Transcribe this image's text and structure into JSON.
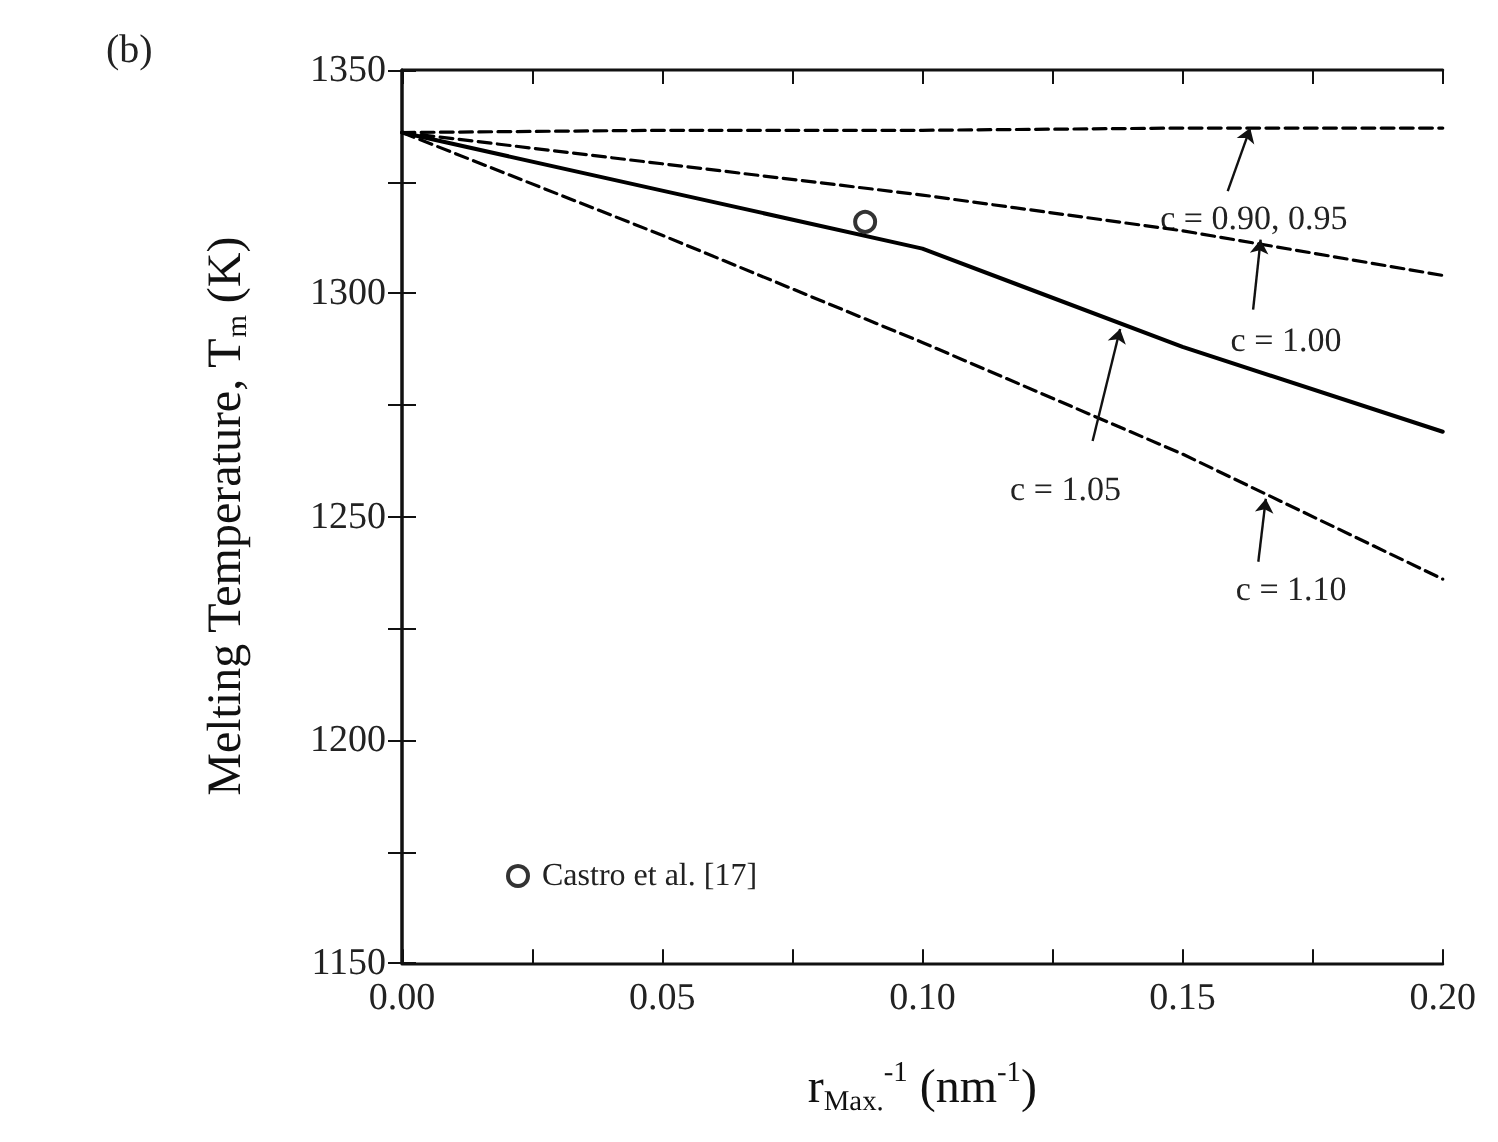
{
  "chart_data": {
    "type": "line",
    "title": "(b)",
    "xlabel": "r$_{Max.}$$^{-1}$ (nm$^{-1}$)",
    "ylabel": "Melting Temperature, T$_{m}$ (K)",
    "x": [
      0,
      0.05,
      0.1,
      0.15,
      0.2
    ],
    "series": [
      {
        "color": "#000000",
        "line_style": "dashed",
        "values": [
          1336,
          1336.5,
          1336.5,
          1337,
          1337
        ]
      },
      {
        "color": "#000000",
        "line_style": "dashed",
        "values": [
          1336,
          1329,
          1322,
          1314,
          1304
        ]
      },
      {
        "color": "#000000",
        "line_style": "solid",
        "values": [
          1336,
          1323,
          1310,
          1288,
          1269
        ]
      },
      {
        "color": "#000000",
        "line_style": "dashed",
        "values": [
          1336,
          1313,
          1289,
          1264,
          1236
        ]
      },
      {
        "type": "scatter",
        "name": "Castro et al. [17]",
        "color": "#000000",
        "marker": "circle",
        "x": [
          0.089
        ],
        "values": [
          1316
        ]
      }
    ],
    "annotations": [
      {
        "text": "c = 0.90, 0.95",
        "x": 0.163,
        "y": 1337
      },
      {
        "text": "c = 1.00",
        "x": 0.165,
        "y": 1312
      },
      {
        "text": "c = 1.05",
        "x": 0.138,
        "y": 1292
      },
      {
        "text": "c = 1.10",
        "x": 0.166,
        "y": 1254
      }
    ],
    "marker": "none",
    "legend": "bottom left",
    "grid": false,
    "xlim": [
      0,
      0.2
    ],
    "xticks": [
      {
        "value": 0,
        "label": "0.00"
      },
      {
        "value": 0.025,
        "label": null
      },
      {
        "value": 0.05,
        "label": "0.05"
      },
      {
        "value": 0.075,
        "label": null
      },
      {
        "value": 0.1,
        "label": "0.10"
      },
      {
        "value": 0.125,
        "label": null
      },
      {
        "value": 0.15,
        "label": "0.15"
      },
      {
        "value": 0.175,
        "label": null
      },
      {
        "value": 0.2,
        "label": "0.20"
      }
    ],
    "ylim": [
      1150,
      1350
    ],
    "yticks": [
      1150,
      {
        "value": 1175,
        "label": null
      },
      1200,
      {
        "value": 1225,
        "label": null
      },
      1250,
      {
        "value": 1275,
        "label": null
      },
      1300,
      {
        "value": 1325,
        "label": null
      },
      1350
    ]
  }
}
